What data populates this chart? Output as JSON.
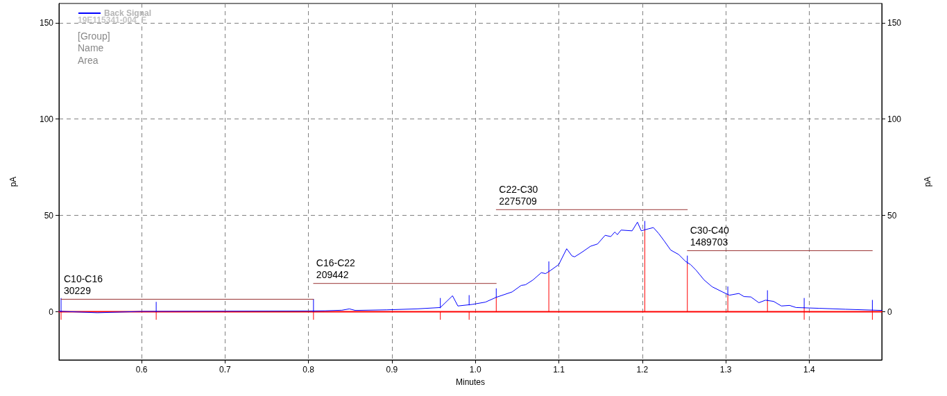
{
  "chart_data": {
    "type": "line",
    "xlabel": "Minutes",
    "ylabel": "pA",
    "y2label": "pA",
    "xlim": [
      0.501,
      1.487
    ],
    "xticks": [
      0.6,
      0.7,
      0.8,
      0.9,
      {
        "value": 1,
        "label": "1.0"
      },
      1.1,
      1.2,
      1.3,
      1.4
    ],
    "ylim": [
      -25,
      160
    ],
    "yticks": [
      0,
      50,
      100,
      150
    ],
    "y2lim": [
      -25,
      160
    ],
    "y2ticks": [
      0,
      50,
      100,
      150
    ],
    "grid": true,
    "legend": "top left",
    "marker": "none",
    "line_style": "solid",
    "series": [
      {
        "name": "Back Signal",
        "color": "#0000ff",
        "x": [
          0.501,
          0.547,
          0.6,
          0.7,
          0.8,
          0.82,
          0.84,
          0.849,
          0.856,
          0.894,
          0.93,
          0.958,
          0.9726,
          0.979,
          0.996,
          1.012,
          1.025,
          1.044,
          1.055,
          1.06,
          1.069,
          1.079,
          1.084,
          1.0886,
          1.0999,
          1.1094,
          1.1157,
          1.1189,
          1.127,
          1.138,
          1.1464,
          1.1555,
          1.1622,
          1.1671,
          1.1701,
          1.1746,
          1.1878,
          1.1942,
          1.1988,
          1.207,
          1.2133,
          1.2195,
          1.2262,
          1.2341,
          1.2437,
          1.2517,
          1.2578,
          1.2644,
          1.2741,
          1.2836,
          1.2965,
          1.3044,
          1.3157,
          1.3218,
          1.3301,
          1.3397,
          1.3476,
          1.3573,
          1.3667,
          1.3765,
          1.3842,
          1.4116,
          1.4432,
          1.487
        ],
        "values": [
          0.3,
          -0.5,
          0.2,
          0.3,
          0.4,
          0.5,
          0.8,
          1.5,
          0.7,
          1,
          1.5,
          2.2,
          8.3,
          3,
          3.8,
          5,
          7.5,
          10.3,
          13.7,
          14,
          16.5,
          20.3,
          19.8,
          21,
          24.5,
          32.7,
          29,
          28.5,
          30.7,
          34,
          35.2,
          39.7,
          39,
          41.4,
          40,
          42.4,
          42,
          46.5,
          42,
          43,
          43.7,
          40.7,
          36.8,
          32,
          29.7,
          26.2,
          24.5,
          21.6,
          16.5,
          13,
          10.2,
          8.6,
          9.5,
          7.9,
          7.7,
          4.7,
          6,
          5.4,
          3,
          3.3,
          2.2,
          1.8,
          1.3,
          0.7
        ]
      },
      {
        "color": "#ff0000",
        "x": [
          0.501,
          1.487
        ],
        "values": [
          0,
          0
        ]
      },
      {
        "color": "#ff0000",
        "x": [
          0.5035,
          0.5035,
          0.6175,
          0.6175,
          0.806,
          0.806,
          0.958,
          0.958,
          0.9925,
          0.9925,
          1.025,
          1.025,
          1.088,
          1.088,
          1.203,
          1.203,
          1.254,
          1.254,
          1.3025,
          1.3025,
          1.35,
          1.35,
          1.394,
          1.394,
          1.4757,
          1.4757
        ],
        "values": [
          -4,
          0,
          -4,
          0,
          -4,
          0,
          -4,
          0,
          -4,
          0,
          0,
          7.5,
          0,
          21,
          0,
          43,
          0,
          25,
          0,
          9,
          0,
          6,
          -4,
          2,
          -4,
          1
        ]
      },
      {
        "color": "#0000ff",
        "x": [
          0.5035,
          0.5035,
          0.6175,
          0.6175,
          0.806,
          0.806,
          0.958,
          0.958,
          0.9925,
          0.9925,
          1.025,
          1.025,
          1.088,
          1.088,
          1.203,
          1.203,
          1.254,
          1.254,
          1.3025,
          1.3025,
          1.35,
          1.35,
          1.394,
          1.394,
          1.4757,
          1.4757
        ],
        "values": [
          0,
          7,
          0,
          5,
          0,
          6.5,
          2,
          7,
          3.5,
          8.5,
          7.5,
          12,
          21,
          26,
          43,
          47,
          25,
          29,
          9,
          13,
          6,
          11,
          2,
          7,
          1,
          6
        ]
      },
      {
        "color": "#993333",
        "x": [
          0.5035,
          0.806
        ],
        "values": [
          6.5,
          6.5
        ]
      },
      {
        "color": "#993333",
        "x": [
          0.806,
          1.025
        ],
        "values": [
          14.7,
          14.7
        ]
      },
      {
        "color": "#993333",
        "x": [
          1.025,
          1.254
        ],
        "values": [
          53,
          53
        ]
      },
      {
        "color": "#993333",
        "x": [
          1.254,
          1.4757
        ],
        "values": [
          31.7,
          31.7
        ]
      }
    ],
    "annotations": [
      "19E115341-004_F",
      "[Group]",
      "Name",
      "Area",
      {
        "text": "C10-C16\n30229",
        "x": 0.5035,
        "y": 6.5
      },
      {
        "text": "C16-C22\n209442",
        "x": 0.806,
        "y": 14.7
      },
      {
        "text": "C22-C30\n2275709",
        "x": 1.025,
        "y": 53
      },
      {
        "text": "C30-C40\n1489703",
        "x": 1.254,
        "y": 31.7
      }
    ]
  }
}
